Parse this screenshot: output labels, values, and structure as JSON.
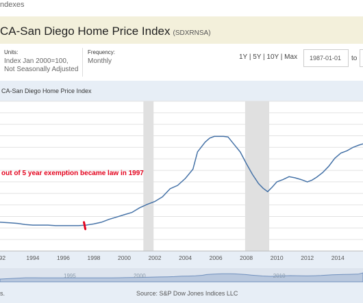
{
  "breadcrumb": "ndexes",
  "header": {
    "title": "CA-San Diego Home Price Index",
    "series_id": "(SDXRNSA)"
  },
  "meta": {
    "units_label": "Units:",
    "units_value_1": "Index Jan 2000=100,",
    "units_value_2": "Not Seasonally Adjusted",
    "frequency_label": "Frequency:",
    "frequency_value": "Monthly"
  },
  "controls": {
    "range_links": "1Y | 5Y | 10Y | Max",
    "start_date": "1987-01-01",
    "to_label": "to"
  },
  "chart_title": "CA-San Diego Home Price Index",
  "annotation": "out of 5 year exemption became law in 1997",
  "navigator_labels": [
    "1995",
    "2000",
    "2010"
  ],
  "footer": {
    "left": "s.",
    "source": "Source: S&P Dow Jones Indices LLC"
  },
  "chart_data": {
    "type": "line",
    "title": "CA-San Diego Home Price Index",
    "x_tick_labels": [
      "92",
      "1994",
      "1996",
      "1998",
      "2000",
      "2002",
      "2004",
      "2006",
      "2008",
      "2010",
      "2012",
      "2014"
    ],
    "xlim": [
      1991.85,
      2015.65
    ],
    "ylim": [
      0,
      260
    ],
    "recessions": [
      [
        2001.25,
        2001.92
      ],
      [
        2007.92,
        2009.5
      ]
    ],
    "marker_year": 1997.4,
    "series": [
      {
        "x": [
          1991.85,
          1992.5,
          1993.0,
          1993.5,
          1994.0,
          1994.5,
          1995.0,
          1995.5,
          1996.0,
          1996.5,
          1997.0,
          1997.5,
          1998.0,
          1998.5,
          1999.0,
          1999.5,
          2000.0,
          2000.5,
          2001.0,
          2001.5,
          2002.0,
          2002.5,
          2003.0,
          2003.5,
          2004.0,
          2004.5,
          2004.8,
          2005.3,
          2005.6,
          2005.9,
          2006.2,
          2006.5,
          2006.8,
          2007.2,
          2007.6,
          2008.0,
          2008.4,
          2008.8,
          2009.1,
          2009.4,
          2009.7,
          2010.0,
          2010.4,
          2010.8,
          2011.2,
          2011.6,
          2012.0,
          2012.3,
          2012.6,
          2013.0,
          2013.4,
          2013.8,
          2014.2,
          2014.6,
          2015.0,
          2015.4,
          2015.65
        ],
        "y": [
          50,
          49,
          48,
          46,
          45,
          45,
          45,
          44,
          44,
          44,
          44,
          45,
          47,
          50,
          55,
          59,
          63,
          67,
          75,
          81,
          86,
          94,
          108,
          114,
          126,
          142,
          172,
          189,
          196,
          199,
          199,
          199,
          198,
          185,
          172,
          152,
          133,
          117,
          109,
          103,
          111,
          120,
          124,
          129,
          127,
          124,
          120,
          123,
          128,
          136,
          147,
          161,
          170,
          174,
          180,
          184,
          186
        ]
      }
    ]
  }
}
